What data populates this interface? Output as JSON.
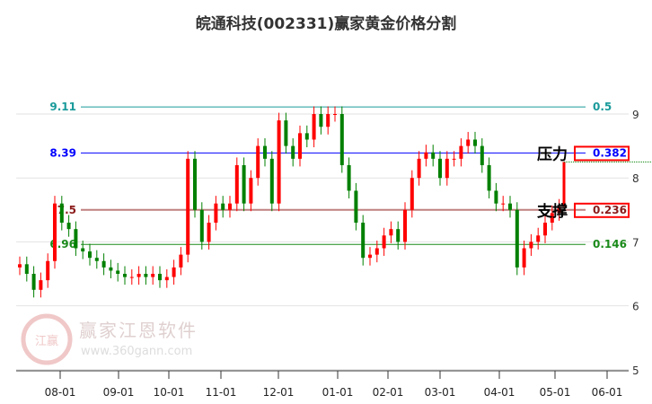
{
  "title": "皖通科技(002331)赢家黄金价格分割",
  "watermark": {
    "text": "赢家江恩软件",
    "url_text": "www.360gann.com",
    "seal": "江赢恩家"
  },
  "chart_data": {
    "type": "candlestick",
    "title": "皖通科技(002331)赢家黄金价格分割",
    "ylim": [
      5,
      9.5
    ],
    "y_ticks": [
      9,
      8,
      7,
      6,
      5
    ],
    "x_ticks": [
      "08-01",
      "09-01",
      "10-01",
      "11-01",
      "12-01",
      "01-01",
      "02-01",
      "03-01",
      "04-01",
      "05-01",
      "06-01"
    ],
    "closes": [
      6.65,
      6.5,
      6.25,
      6.4,
      6.7,
      7.6,
      7.3,
      7.2,
      6.9,
      6.85,
      6.75,
      6.7,
      6.6,
      6.55,
      6.5,
      6.45,
      6.45,
      6.5,
      6.45,
      6.5,
      6.4,
      6.45,
      6.6,
      6.8,
      8.3,
      7.5,
      7.0,
      7.3,
      7.6,
      7.5,
      7.6,
      8.2,
      7.6,
      8.0,
      8.5,
      8.3,
      7.6,
      8.9,
      8.5,
      8.3,
      8.7,
      8.6,
      9.0,
      8.8,
      9.0,
      9.0,
      8.2,
      7.8,
      7.3,
      6.75,
      6.8,
      6.9,
      7.1,
      7.2,
      7.0,
      7.5,
      8.0,
      8.3,
      8.4,
      8.3,
      8.0,
      8.3,
      8.3,
      8.5,
      8.6,
      8.5,
      8.2,
      7.8,
      7.6,
      7.6,
      7.5,
      6.6,
      6.9,
      7.0,
      7.1,
      7.3,
      7.45,
      7.55
    ],
    "up_color": "#ff0000",
    "down_color": "#008000",
    "levels": [
      {
        "price": 9.11,
        "label": "9.11",
        "ratio": "0.5",
        "color": "#1a9a9a"
      },
      {
        "price": 8.39,
        "label": "8.39",
        "ratio": "0.382",
        "color": "#0000ff",
        "boxed": true
      },
      {
        "price": 7.5,
        "label": "7.5",
        "ratio": "0.236",
        "color": "#8b1a1a",
        "line_color": "#c08080",
        "boxed": true
      },
      {
        "price": 6.96,
        "label": "6.96",
        "ratio": "0.146",
        "color": "#1a8a1a"
      }
    ],
    "annotations": {
      "resistance": "压力",
      "support": "支撑"
    }
  }
}
